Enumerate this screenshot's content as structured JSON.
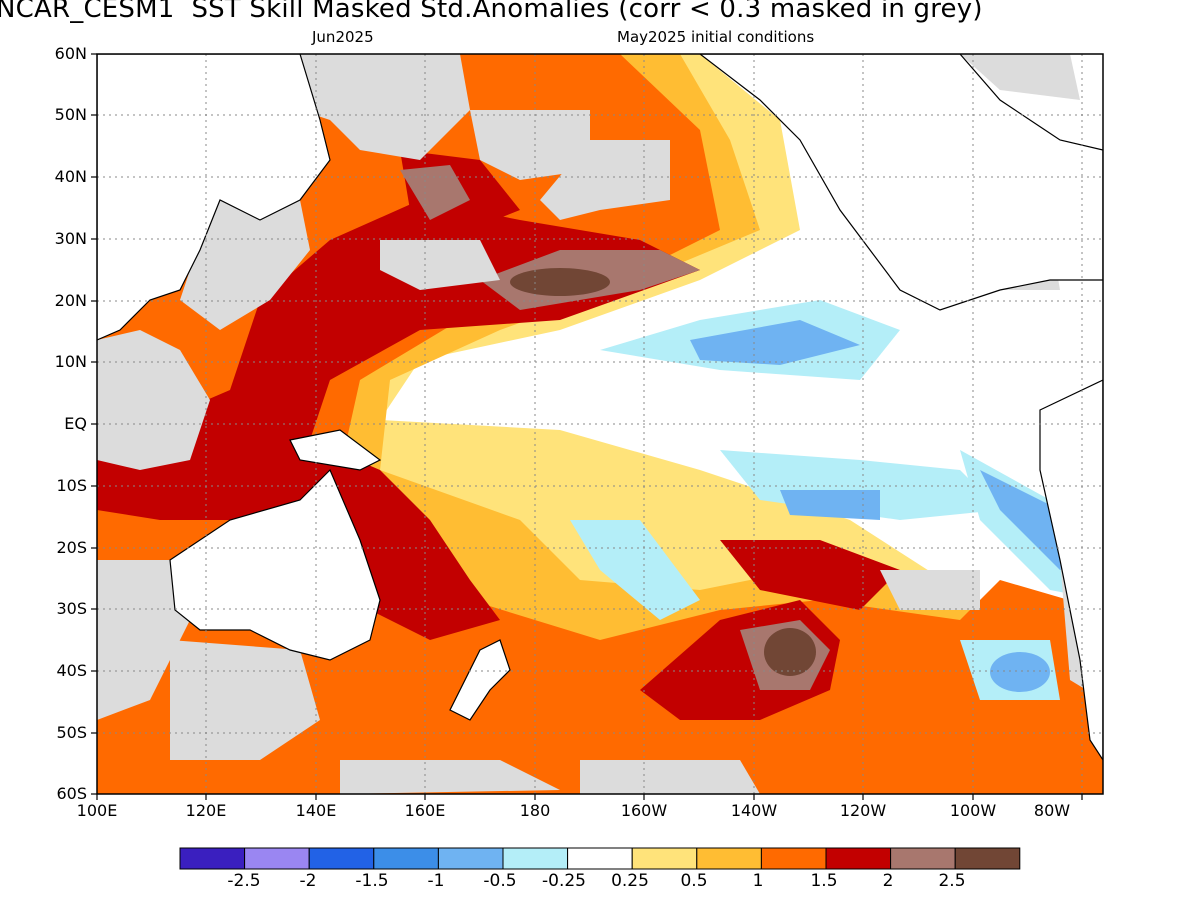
{
  "header": {
    "title": "NCAR_CESM1  SST Skill Masked Std.Anomalies (corr < 0.3 masked in grey)",
    "valid": "Jun2025",
    "init": "May2025 initial conditions"
  },
  "axes": {
    "lat_labels": [
      "60N",
      "50N",
      "40N",
      "30N",
      "20N",
      "10N",
      "EQ",
      "10S",
      "20S",
      "30S",
      "40S",
      "50S",
      "60S"
    ],
    "lon_labels": [
      "100E",
      "120E",
      "140E",
      "160E",
      "180",
      "160W",
      "140W",
      "120W",
      "100W",
      "80W"
    ]
  },
  "colorbar": {
    "colors": [
      "#3a1fbf",
      "#9a86f2",
      "#2262e6",
      "#3c8ee8",
      "#6fb3f2",
      "#b4eef8",
      "#ffffff",
      "#ffe37a",
      "#ffbd33",
      "#ff6a00",
      "#c20000",
      "#a8776e",
      "#714635"
    ],
    "labels": [
      "-2.5",
      "-2",
      "-1.5",
      "-1",
      "-0.5",
      "-0.25",
      "0.25",
      "0.5",
      "1",
      "1.5",
      "2",
      "2.5"
    ],
    "mask_color": "#dcdcdc"
  }
}
